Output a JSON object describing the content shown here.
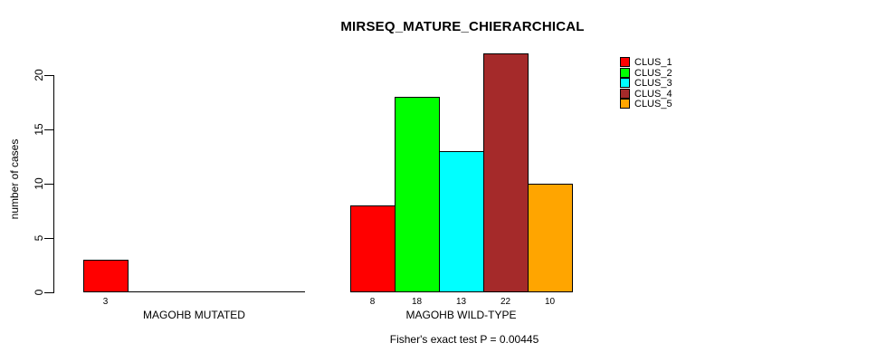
{
  "title": "MIRSEQ_MATURE_CHIERARCHICAL",
  "y_axis": {
    "label": "number of cases",
    "tick_labels": [
      "0",
      "5",
      "10",
      "15",
      "20"
    ]
  },
  "footer": "Fisher's exact test P = 0.00445",
  "legend": {
    "items": [
      {
        "label": "CLUS_1",
        "color": "#FF0000"
      },
      {
        "label": "CLUS_2",
        "color": "#00FF00"
      },
      {
        "label": "CLUS_3",
        "color": "#00FFFF"
      },
      {
        "label": "CLUS_4",
        "color": "#A52A2A"
      },
      {
        "label": "CLUS_5",
        "color": "#FFA500"
      }
    ]
  },
  "chart_data": {
    "type": "bar",
    "title": "MIRSEQ_MATURE_CHIERARCHICAL",
    "ylabel": "number of cases",
    "xlabel": "",
    "ylim": [
      0,
      20
    ],
    "y_ticks": [
      0,
      5,
      10,
      15,
      20
    ],
    "grid": false,
    "legend_position": "top-right",
    "categories": [
      "MAGOHB MUTATED",
      "MAGOHB WILD-TYPE"
    ],
    "series": [
      {
        "name": "CLUS_1",
        "color": "#FF0000",
        "values": [
          3,
          8
        ]
      },
      {
        "name": "CLUS_2",
        "color": "#00FF00",
        "values": [
          0,
          18
        ]
      },
      {
        "name": "CLUS_3",
        "color": "#00FFFF",
        "values": [
          0,
          13
        ]
      },
      {
        "name": "CLUS_4",
        "color": "#A52A2A",
        "values": [
          0,
          22
        ]
      },
      {
        "name": "CLUS_5",
        "color": "#FFA500",
        "values": [
          0,
          10
        ]
      }
    ],
    "bar_value_labels": [
      [
        3,
        null,
        null,
        null,
        null
      ],
      [
        8,
        18,
        13,
        22,
        10
      ]
    ],
    "annotation": "Fisher's exact test P = 0.00445"
  },
  "colors": {
    "background": "#FFFFFF",
    "axis": "#000000",
    "bar_border": "#000000",
    "text": "#000000"
  }
}
